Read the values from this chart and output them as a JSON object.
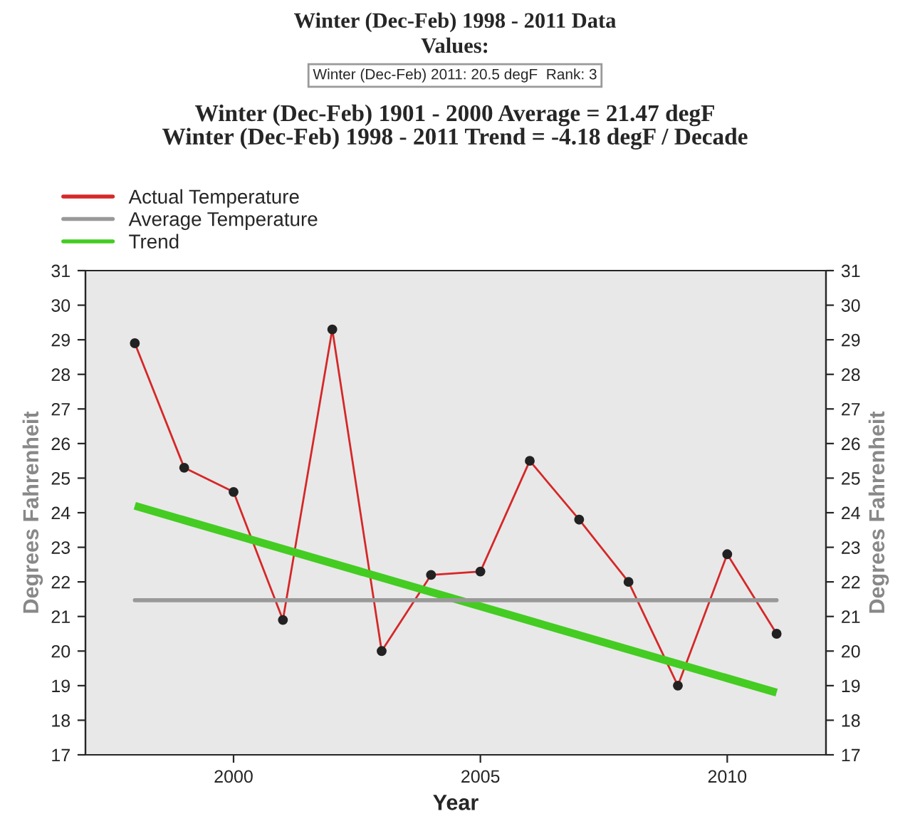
{
  "chart_data": {
    "type": "line",
    "title": "Winter (Dec-Feb) 1998 - 2011 Data",
    "subtitle": "Winter (Dec-Feb) 1901 - 2000 Average = 21.47 degF\nWinter (Dec-Feb) 1998 - 2011 Trend = -4.18 degF / Decade",
    "annotations": [
      "Values:",
      "Winter (Dec-Feb) 2011: 20.5 degF  Rank: 3"
    ],
    "xlabel": "Year",
    "ylabel": "Degrees Fahrenheit",
    "y2label": "Degrees Fahrenheit",
    "x": [
      1998,
      1999,
      2000,
      2001,
      2002,
      2003,
      2004,
      2005,
      2006,
      2007,
      2008,
      2009,
      2010,
      2011
    ],
    "series": [
      {
        "name": "Actual Temperature",
        "color": "#d62728",
        "marker": "circle",
        "values": [
          28.9,
          25.3,
          24.6,
          20.9,
          29.3,
          20.0,
          22.2,
          22.3,
          25.5,
          23.8,
          22.0,
          19.0,
          22.8,
          20.5
        ]
      },
      {
        "name": "Trend",
        "color": "#44cc22",
        "marker": "none",
        "x": [
          1998,
          2011
        ],
        "values": [
          24.2,
          18.8
        ]
      }
    ],
    "xlim": [
      1997,
      2012
    ],
    "xticks": [
      2000,
      2005,
      2010
    ],
    "ylim": [
      17,
      31
    ],
    "yticks": [
      17,
      18,
      19,
      20,
      21,
      22,
      23,
      24,
      25,
      26,
      27,
      28,
      29,
      30,
      31
    ],
    "y2lim": [
      17,
      31
    ],
    "y2ticks": [
      17,
      18,
      19,
      20,
      21,
      22,
      23,
      24,
      25,
      26,
      27,
      28,
      29,
      30,
      31
    ],
    "ref_lines": [
      {
        "axis": "y",
        "value": 21.47,
        "label": "Average Temperature",
        "color": "#999999"
      }
    ],
    "grid": false,
    "legend": "top left"
  }
}
